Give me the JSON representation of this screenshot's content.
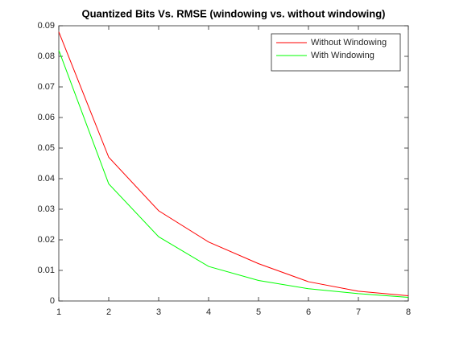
{
  "chart_data": {
    "type": "line",
    "title": "Quantized Bits Vs. RMSE (windowing vs. without windowing)",
    "x": [
      1,
      2,
      3,
      4,
      5,
      6,
      7,
      8
    ],
    "series": [
      {
        "name": "Without Windowing",
        "color": "#ff0000",
        "values": [
          0.088,
          0.047,
          0.0295,
          0.0193,
          0.0122,
          0.0063,
          0.0032,
          0.0017
        ]
      },
      {
        "name": "With Windowing",
        "color": "#00ff00",
        "values": [
          0.082,
          0.0383,
          0.021,
          0.0113,
          0.0067,
          0.004,
          0.0024,
          0.0012
        ]
      }
    ],
    "xlim": [
      1,
      8
    ],
    "xticks": [
      1,
      2,
      3,
      4,
      5,
      6,
      7,
      8
    ],
    "ylim": [
      0,
      0.09
    ],
    "yticks": [
      0,
      0.01,
      0.02,
      0.03,
      0.04,
      0.05,
      0.06,
      0.07,
      0.08,
      0.09
    ],
    "grid": false,
    "legend": "northeast"
  }
}
